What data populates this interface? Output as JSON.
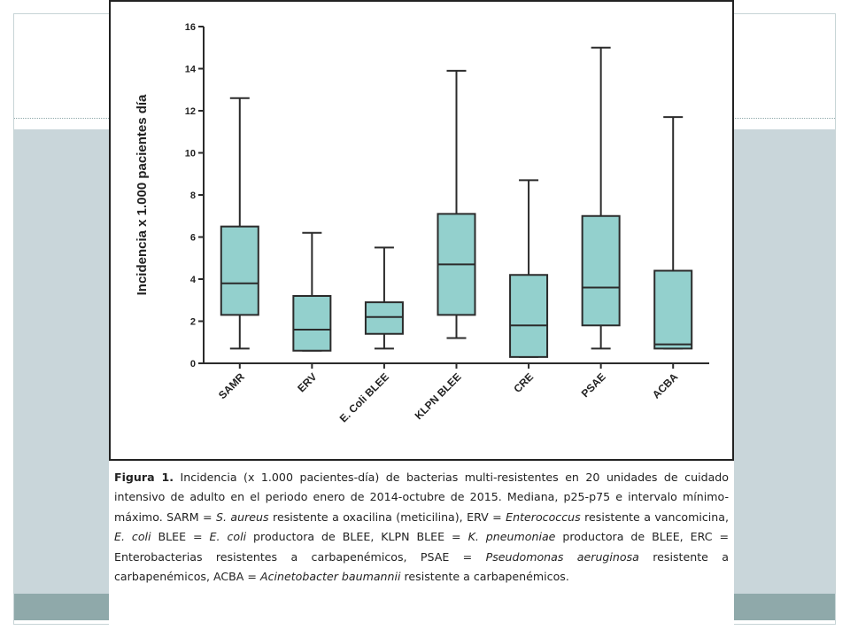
{
  "chart_data": {
    "type": "boxplot",
    "ylabel": "Incidencia x 1.000 pacientes día",
    "ylim": [
      0,
      16
    ],
    "yticks": [
      0,
      2,
      4,
      6,
      8,
      10,
      12,
      14,
      16
    ],
    "categories": [
      "SAMR",
      "ERV",
      "E. Coli BLEE",
      "KLPN BLEE",
      "CRE",
      "PSAE",
      "ACBA"
    ],
    "boxes": [
      {
        "category": "SAMR",
        "min": 0.7,
        "q1": 2.3,
        "median": 3.8,
        "q3": 6.5,
        "max": 12.6
      },
      {
        "category": "ERV",
        "min": 0.6,
        "q1": 0.6,
        "median": 1.6,
        "q3": 3.2,
        "max": 6.2
      },
      {
        "category": "E. Coli BLEE",
        "min": 0.7,
        "q1": 1.4,
        "median": 2.2,
        "q3": 2.9,
        "max": 5.5
      },
      {
        "category": "KLPN BLEE",
        "min": 1.2,
        "q1": 2.3,
        "median": 4.7,
        "q3": 7.1,
        "max": 13.9
      },
      {
        "category": "CRE",
        "min": 0.3,
        "q1": 0.3,
        "median": 1.8,
        "q3": 4.2,
        "max": 8.7
      },
      {
        "category": "PSAE",
        "min": 0.7,
        "q1": 1.8,
        "median": 3.6,
        "q3": 7.0,
        "max": 15.0
      },
      {
        "category": "ACBA",
        "min": 0.7,
        "q1": 0.7,
        "median": 0.9,
        "q3": 4.4,
        "max": 11.7
      }
    ],
    "box_color": "#93d0cd",
    "line_color": "#2b2b2b"
  },
  "caption": {
    "label": "Figura 1.",
    "p1": " Incidencia (x 1.000 pacientes-día) de bacterias multi-resistentes en 20 unidades de cuidado intensivo de adulto en el periodo enero de 2014-octubre de 2015. Mediana, p25-p75 e intervalo mínimo-máximo. SARM = ",
    "i1": "S. aureus",
    "p2": " resistente a oxacilina (meticilina), ERV = ",
    "i2": "Enterococcus",
    "p3": " resistente a vancomicina, ",
    "i3": "E. coli",
    "p4": " BLEE = ",
    "i4": "E. coli",
    "p5": " productora de BLEE, KLPN BLEE = ",
    "i5": "K. pneumoniae",
    "p6": " productora de BLEE, ERC = Enterobacterias resistentes a carbapenémicos, PSAE = ",
    "i6": "Pseudomonas aeruginosa",
    "p7": " resistente a carbapenémicos, ACBA = ",
    "i7": "Acinetobacter baumannii",
    "p8": " resistente a carbapenémicos."
  }
}
